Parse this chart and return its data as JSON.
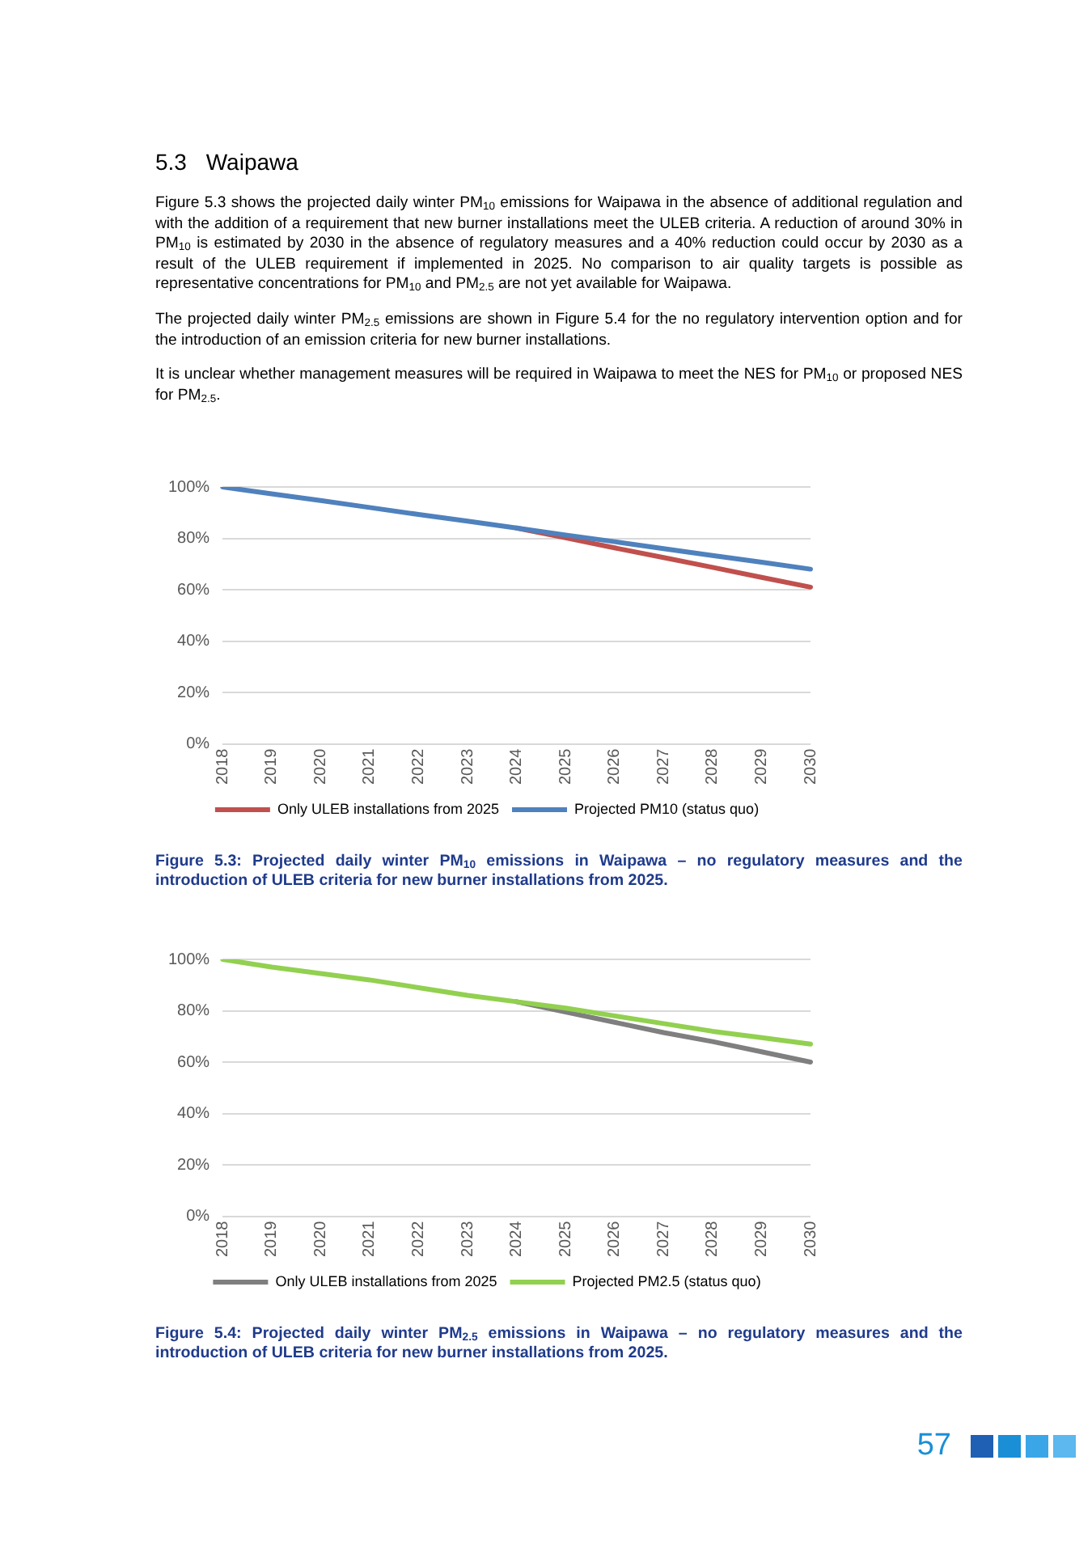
{
  "chart_data": [
    {
      "type": "line",
      "title": "5.3 Waipawa",
      "subtitle": "Figure 5.3 shows the projected daily winter PM$_{10}$ emissions for Waipawa in the absence of additional regulation and with the addition of a requirement that new burner installations meet the ULEB criteria.  A reduction of around 30% in PM$_{10}$ is estimated by 2030 in the absence of regulatory measures and a 40% reduction could occur by 2030 as a result of the ULEB requirement if implemented in 2025.  No comparison to air quality targets is possible as representative concentrations for PM$_{10}$ and PM$_{2.5}$ are not yet available for Waipawa.\n\nThe projected daily winter PM$_{2.5}$ emissions are shown in Figure 5.4 for the no regulatory intervention option and for the introduction of an emission criteria for new burner installations.\n\nIt is unclear whether management measures will be required in Waipawa to meet the NES for PM$_{10}$ or proposed NES for PM$_{2.5}$.",
      "categories": [
        "2018",
        "2019",
        "2020",
        "2021",
        "2022",
        "2023",
        "2024",
        "2025",
        "2026",
        "2027",
        "2028",
        "2029",
        "2030"
      ],
      "series": [
        {
          "name": "Only ULEB installations from 2025",
          "color": "#c0504d",
          "values": [
            null,
            null,
            null,
            null,
            null,
            null,
            84,
            80.2,
            76.3,
            72.5,
            68.7,
            64.8,
            61
          ]
        },
        {
          "name": "Projected PM10 (status quo)",
          "color": "#4f81bd",
          "values": [
            100,
            97.3,
            94.7,
            92,
            89.3,
            86.7,
            84,
            81.3,
            78.7,
            76,
            73.3,
            70.7,
            68
          ]
        }
      ],
      "ylim": [
        0,
        100
      ],
      "yticks": [
        {
          "value": 0,
          "label": "0%"
        },
        {
          "value": 20,
          "label": "20%"
        },
        {
          "value": 40,
          "label": "40%"
        },
        {
          "value": 60,
          "label": "60%"
        },
        {
          "value": 80,
          "label": "80%"
        },
        {
          "value": 100,
          "label": "100%"
        }
      ],
      "grid": "y",
      "legend": "bottom",
      "marker": "none",
      "line_style": "solid",
      "annotations": [
        "Figure 5.3: Projected daily winter PM$_{10}$ emissions in Waipawa – no regulatory measures and the introduction of ULEB criteria for new burner installations from 2025."
      ]
    },
    {
      "type": "line",
      "categories": [
        "2018",
        "2019",
        "2020",
        "2021",
        "2022",
        "2023",
        "2024",
        "2025",
        "2026",
        "2027",
        "2028",
        "2029",
        "2030"
      ],
      "series": [
        {
          "name": "Only ULEB installations from 2025",
          "color": "#7f7f7f",
          "values": [
            null,
            null,
            null,
            null,
            null,
            null,
            83.5,
            79.5,
            75.5,
            71.5,
            68,
            64,
            60
          ]
        },
        {
          "name": "Projected PM2.5 (status quo)",
          "color": "#92d050",
          "values": [
            100,
            97,
            94.5,
            92,
            89,
            86,
            83.5,
            81,
            78,
            75,
            72,
            69.5,
            67
          ]
        }
      ],
      "ylim": [
        0,
        100
      ],
      "yticks": [
        {
          "value": 0,
          "label": "0%"
        },
        {
          "value": 20,
          "label": "20%"
        },
        {
          "value": 40,
          "label": "40%"
        },
        {
          "value": 60,
          "label": "60%"
        },
        {
          "value": 80,
          "label": "80%"
        },
        {
          "value": 100,
          "label": "100%"
        }
      ],
      "grid": "y",
      "legend": "bottom",
      "marker": "none",
      "line_style": "solid",
      "annotations": [
        "Figure 5.4: Projected daily winter PM$_{2.5}$ emissions in Waipawa – no regulatory measures and the introduction of ULEB criteria for new burner installations from 2025.",
        "57"
      ]
    }
  ]
}
